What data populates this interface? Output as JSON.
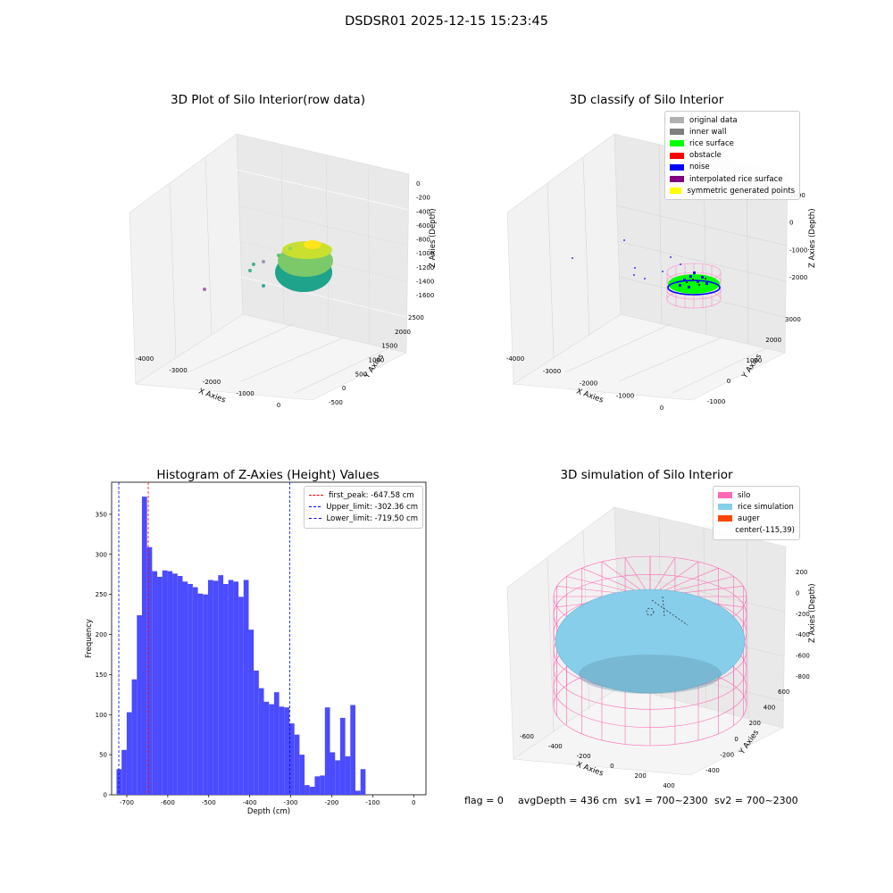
{
  "suptitle": "DSDSR01 2025-12-15 15:23:45",
  "panel1": {
    "title": "3D Plot of Silo Interior(row data)",
    "xlabel": "X Axies",
    "ylabel": "Y Axies",
    "zlabel": "Z Axies (Depth)",
    "xticks": [
      "-4000",
      "-3000",
      "-2000",
      "-1000",
      "0"
    ],
    "yticks": [
      "-500",
      "0",
      "500",
      "1000",
      "1500",
      "2000",
      "2500"
    ],
    "zticks": [
      "0",
      "-200",
      "-400",
      "-600",
      "-800",
      "-1000",
      "-1200",
      "-1400",
      "-1600"
    ]
  },
  "panel2": {
    "title": "3D classify of Silo Interior",
    "xlabel": "X Axies",
    "ylabel": "Y Axies",
    "zlabel": "Z Axies (Depth)",
    "xticks": [
      "-4000",
      "-3000",
      "-2000",
      "-1000",
      "0"
    ],
    "yticks": [
      "-1000",
      "0",
      "1000",
      "2000",
      "3000"
    ],
    "zticks": [
      "1000",
      "0",
      "-1000",
      "-2000"
    ],
    "legend": [
      {
        "label": "original data",
        "color": "#b0b0b0"
      },
      {
        "label": "inner wall",
        "color": "#808080"
      },
      {
        "label": "rice surface",
        "color": "#00ff00"
      },
      {
        "label": "obstacle",
        "color": "#ff0000"
      },
      {
        "label": "noise",
        "color": "#0000ff"
      },
      {
        "label": "interpolated rice surface",
        "color": "#800080"
      },
      {
        "label": "symmetric generated points",
        "color": "#ffff00"
      }
    ]
  },
  "panel4": {
    "title": "3D simulation of Silo Interior",
    "xlabel": "X Axies",
    "ylabel": "Y Axies",
    "zlabel": "Z Axies (Depth)",
    "xticks": [
      "-600",
      "-400",
      "-200",
      "0",
      "200",
      "400"
    ],
    "yticks": [
      "-400",
      "-200",
      "0",
      "200",
      "400",
      "600"
    ],
    "zticks": [
      "200",
      "0",
      "-200",
      "-400",
      "-600",
      "-800"
    ],
    "legend": [
      {
        "label": "silo",
        "color": "#ff69b4"
      },
      {
        "label": "rice simulation",
        "color": "#87ceeb"
      },
      {
        "label": "auger",
        "color": "#ff4500"
      },
      {
        "label": "center(-115,39)",
        "color": ""
      }
    ]
  },
  "footer": {
    "flag": "flag = 0",
    "avg": "avgDepth = 436 cm",
    "sv1": "sv1 = 700~2300",
    "sv2": "sv2 = 700~2300"
  },
  "chart_data": {
    "type": "bar",
    "title": "Histogram of Z-Axies (Height) Values",
    "xlabel": "Depth (cm)",
    "ylabel": "Frequency",
    "xlim": [
      -737,
      30
    ],
    "ylim": [
      0,
      390
    ],
    "bar_color": "#4b4bff",
    "bin_start": -725,
    "bin_width": 12.4,
    "values": [
      32,
      56,
      103,
      144,
      224,
      372,
      309,
      279,
      272,
      280,
      279,
      276,
      273,
      266,
      263,
      259,
      251,
      250,
      268,
      267,
      274,
      263,
      268,
      266,
      247,
      268,
      206,
      155,
      133,
      116,
      113,
      128,
      110,
      109,
      89,
      75,
      50,
      12,
      10,
      23,
      24,
      109,
      53,
      43,
      96,
      48,
      112,
      5,
      32
    ],
    "x_ticks": [
      -700,
      -600,
      -500,
      -400,
      -300,
      -200,
      -100,
      0
    ],
    "y_ticks": [
      0,
      50,
      100,
      150,
      200,
      250,
      300,
      350
    ],
    "vlines": [
      {
        "label": "first_peak: -647.58 cm",
        "x": -647.58,
        "color": "#ff0000"
      },
      {
        "label": "Upper_limit: -302.36 cm",
        "x": -302.36,
        "color": "#0000ff"
      },
      {
        "label": "Lower_limit: -719.50 cm",
        "x": -719.5,
        "color": "#0000ff"
      }
    ],
    "legend_position": "top-right"
  }
}
